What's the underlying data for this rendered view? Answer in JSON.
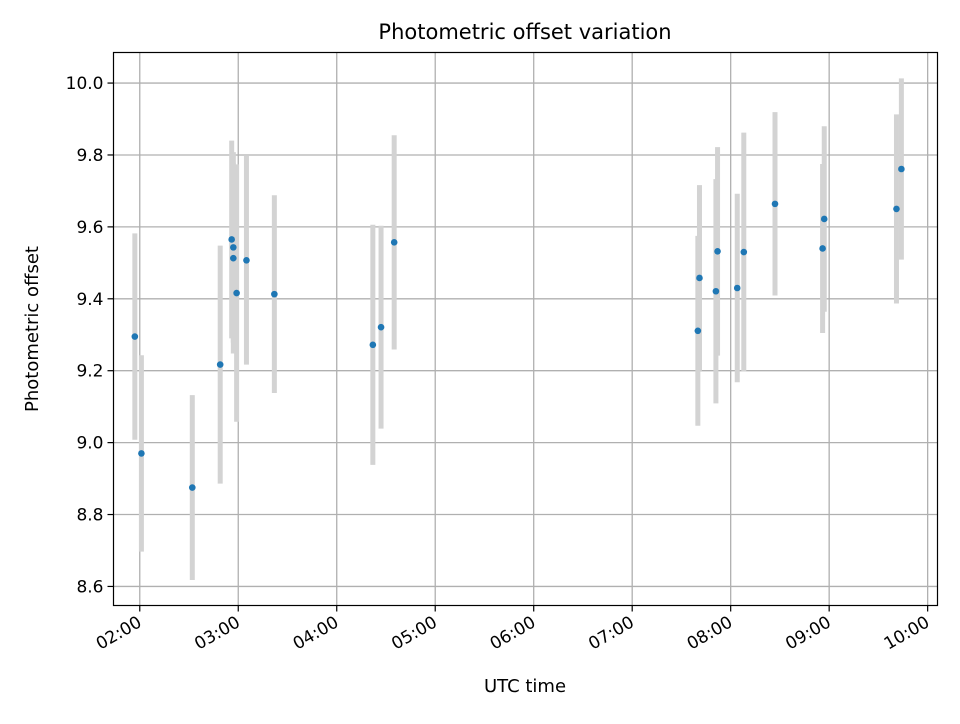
{
  "chart_data": {
    "type": "scatter",
    "title": "Photometric offset variation",
    "xlabel": "UTC time",
    "ylabel": "Photometric offset",
    "x_ticks": [
      "02:00",
      "03:00",
      "04:00",
      "05:00",
      "06:00",
      "07:00",
      "08:00",
      "09:00",
      "10:00"
    ],
    "y_ticks": [
      "8.6",
      "8.8",
      "9.0",
      "9.2",
      "9.4",
      "9.6",
      "9.8",
      "10.0"
    ],
    "xlim": [
      "01:44",
      "10:06"
    ],
    "ylim": [
      8.547,
      10.085
    ],
    "grid": true,
    "marker_color": "#1f77b4",
    "errorbar_color": "#d3d3d3",
    "series": [
      {
        "points": [
          {
            "x": "01:57",
            "y": 9.295,
            "yerr": 0.287
          },
          {
            "x": "02:01",
            "y": 8.97,
            "yerr": 0.273
          },
          {
            "x": "02:32",
            "y": 8.875,
            "yerr": 0.257
          },
          {
            "x": "02:49",
            "y": 9.217,
            "yerr": 0.331
          },
          {
            "x": "02:56",
            "y": 9.565,
            "yerr": 0.275
          },
          {
            "x": "02:57",
            "y": 9.543,
            "yerr": 0.265
          },
          {
            "x": "02:57",
            "y": 9.513,
            "yerr": 0.265
          },
          {
            "x": "02:59",
            "y": 9.416,
            "yerr": 0.358
          },
          {
            "x": "03:05",
            "y": 9.507,
            "yerr": 0.29
          },
          {
            "x": "03:22",
            "y": 9.413,
            "yerr": 0.275
          },
          {
            "x": "04:22",
            "y": 9.272,
            "yerr": 0.334
          },
          {
            "x": "04:27",
            "y": 9.321,
            "yerr": 0.282
          },
          {
            "x": "04:35",
            "y": 9.557,
            "yerr": 0.298
          },
          {
            "x": "07:40",
            "y": 9.311,
            "yerr": 0.264
          },
          {
            "x": "07:41",
            "y": 9.458,
            "yerr": 0.258
          },
          {
            "x": "07:51",
            "y": 9.421,
            "yerr": 0.312
          },
          {
            "x": "07:52",
            "y": 9.532,
            "yerr": 0.29
          },
          {
            "x": "08:04",
            "y": 9.43,
            "yerr": 0.262
          },
          {
            "x": "08:08",
            "y": 9.53,
            "yerr": 0.332
          },
          {
            "x": "08:27",
            "y": 9.664,
            "yerr": 0.255
          },
          {
            "x": "08:56",
            "y": 9.54,
            "yerr": 0.235
          },
          {
            "x": "08:57",
            "y": 9.622,
            "yerr": 0.258
          },
          {
            "x": "09:41",
            "y": 9.65,
            "yerr": 0.263
          },
          {
            "x": "09:44",
            "y": 9.761,
            "yerr": 0.252
          }
        ]
      }
    ]
  }
}
